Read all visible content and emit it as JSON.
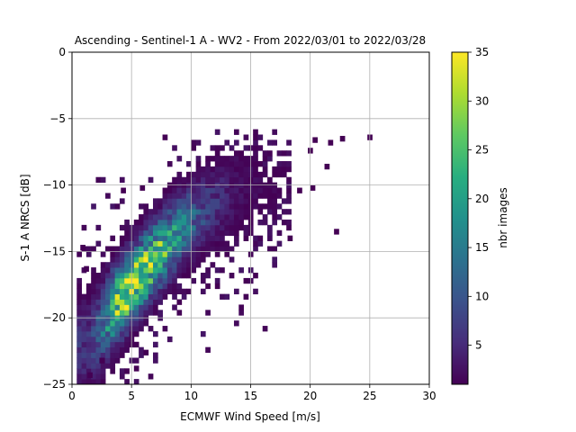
{
  "chart_data": {
    "type": "heatmap",
    "title": "Ascending - Sentinel-1 A - WV2 - From 2022/03/01 to 2022/03/28",
    "xlabel": "ECMWF Wind Speed [m/s]",
    "ylabel": "S-1 A NRCS [dB]",
    "xlim": [
      0,
      30
    ],
    "ylim": [
      -25,
      0
    ],
    "x_ticks": [
      "0",
      "5",
      "10",
      "15",
      "20",
      "25",
      "30"
    ],
    "y_ticks": [
      "0",
      "−5",
      "−10",
      "−15",
      "−20",
      "−25"
    ],
    "grid": true,
    "bin_size": {
      "x": 0.4,
      "y": 0.4
    },
    "colorbar": {
      "label": "nbr images",
      "range": [
        1,
        35
      ],
      "ticks": [
        "5",
        "10",
        "15",
        "20",
        "25",
        "30",
        "35"
      ],
      "colormap": "viridis"
    },
    "density_ridge": [
      {
        "x": 1.5,
        "y": -22.0,
        "width": 2.2,
        "peak": 6
      },
      {
        "x": 2.5,
        "y": -20.5,
        "width": 2.0,
        "peak": 12
      },
      {
        "x": 3.5,
        "y": -19.2,
        "width": 1.8,
        "peak": 24
      },
      {
        "x": 4.5,
        "y": -18.2,
        "width": 1.7,
        "peak": 33
      },
      {
        "x": 5.5,
        "y": -17.0,
        "width": 1.7,
        "peak": 30
      },
      {
        "x": 6.5,
        "y": -16.0,
        "width": 1.7,
        "peak": 28
      },
      {
        "x": 7.5,
        "y": -15.0,
        "width": 1.7,
        "peak": 24
      },
      {
        "x": 8.5,
        "y": -14.0,
        "width": 1.7,
        "peak": 18
      },
      {
        "x": 9.5,
        "y": -13.0,
        "width": 1.7,
        "peak": 15
      },
      {
        "x": 10.5,
        "y": -12.4,
        "width": 1.8,
        "peak": 10
      },
      {
        "x": 11.5,
        "y": -11.8,
        "width": 1.9,
        "peak": 7
      },
      {
        "x": 12.5,
        "y": -11.2,
        "width": 2.0,
        "peak": 5
      },
      {
        "x": 13.5,
        "y": -10.8,
        "width": 2.0,
        "peak": 3
      },
      {
        "x": 14.5,
        "y": -10.4,
        "width": 2.0,
        "peak": 2
      },
      {
        "x": 15.5,
        "y": -10.0,
        "width": 2.0,
        "peak": 2
      },
      {
        "x": 16.5,
        "y": -9.8,
        "width": 1.8,
        "peak": 1
      },
      {
        "x": 17.5,
        "y": -9.4,
        "width": 1.6,
        "peak": 1
      },
      {
        "x": 18.5,
        "y": -9.2,
        "width": 1.4,
        "peak": 1
      }
    ],
    "outliers": [
      {
        "x": 24.8,
        "y": -6.6,
        "v": 1
      },
      {
        "x": 22.5,
        "y": -6.7,
        "v": 1
      },
      {
        "x": 21.5,
        "y": -7.0,
        "v": 1
      },
      {
        "x": 20.2,
        "y": -6.8,
        "v": 1
      },
      {
        "x": 21.2,
        "y": -8.8,
        "v": 1
      },
      {
        "x": 22.0,
        "y": -13.7,
        "v": 1
      },
      {
        "x": 18.1,
        "y": -14.2,
        "v": 1
      },
      {
        "x": 19.8,
        "y": -7.6,
        "v": 1
      },
      {
        "x": 20.0,
        "y": -10.4,
        "v": 1
      },
      {
        "x": 18.9,
        "y": -10.6,
        "v": 1
      },
      {
        "x": 4.1,
        "y": -10.6,
        "v": 1
      },
      {
        "x": 5.7,
        "y": -10.4,
        "v": 1
      },
      {
        "x": 1.3,
        "y": -24.5,
        "v": 1
      },
      {
        "x": 5.2,
        "y": -24.0,
        "v": 1
      },
      {
        "x": 6.0,
        "y": -22.8,
        "v": 1
      },
      {
        "x": 12.0,
        "y": -17.8,
        "v": 1
      },
      {
        "x": 2.3,
        "y": -23.4,
        "v": 1
      },
      {
        "x": 0.7,
        "y": -14.9,
        "v": 1
      },
      {
        "x": 1.0,
        "y": -16.5,
        "v": 1
      }
    ]
  }
}
